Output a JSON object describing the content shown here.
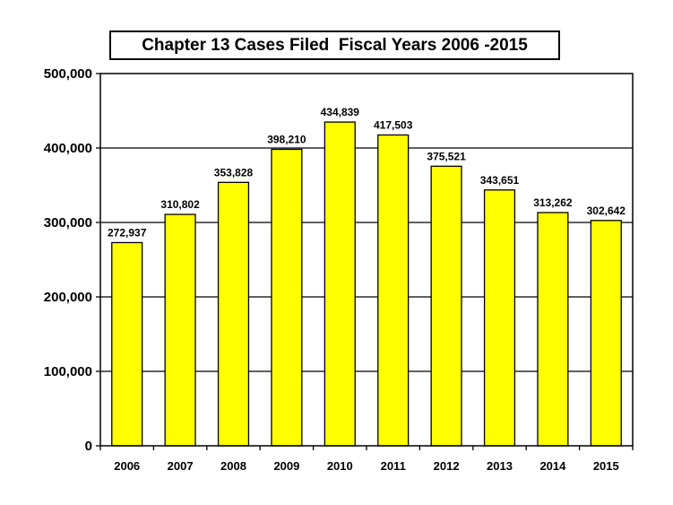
{
  "chart_data": {
    "type": "bar",
    "title": "Chapter 13 Cases Filed  Fiscal Years 2006 -2015",
    "xlabel": "",
    "ylabel": "",
    "categories": [
      "2006",
      "2007",
      "2008",
      "2009",
      "2010",
      "2011",
      "2012",
      "2013",
      "2014",
      "2015"
    ],
    "values": [
      272937,
      310802,
      353828,
      398210,
      434839,
      417503,
      375521,
      343651,
      313262,
      302642
    ],
    "data_labels": [
      "272,937",
      "310,802",
      "353,828",
      "398,210",
      "434,839",
      "417,503",
      "375,521",
      "343,651",
      "313,262",
      "302,642"
    ],
    "ylim": [
      0,
      500000
    ],
    "yticks": [
      0,
      100000,
      200000,
      300000,
      400000,
      500000
    ],
    "ytick_labels": [
      "0",
      "100,000",
      "200,000",
      "300,000",
      "400,000",
      "500,000"
    ],
    "grid": true,
    "legend": "none",
    "bar_color": "#ffff00",
    "bar_edge_color": "#000000"
  }
}
